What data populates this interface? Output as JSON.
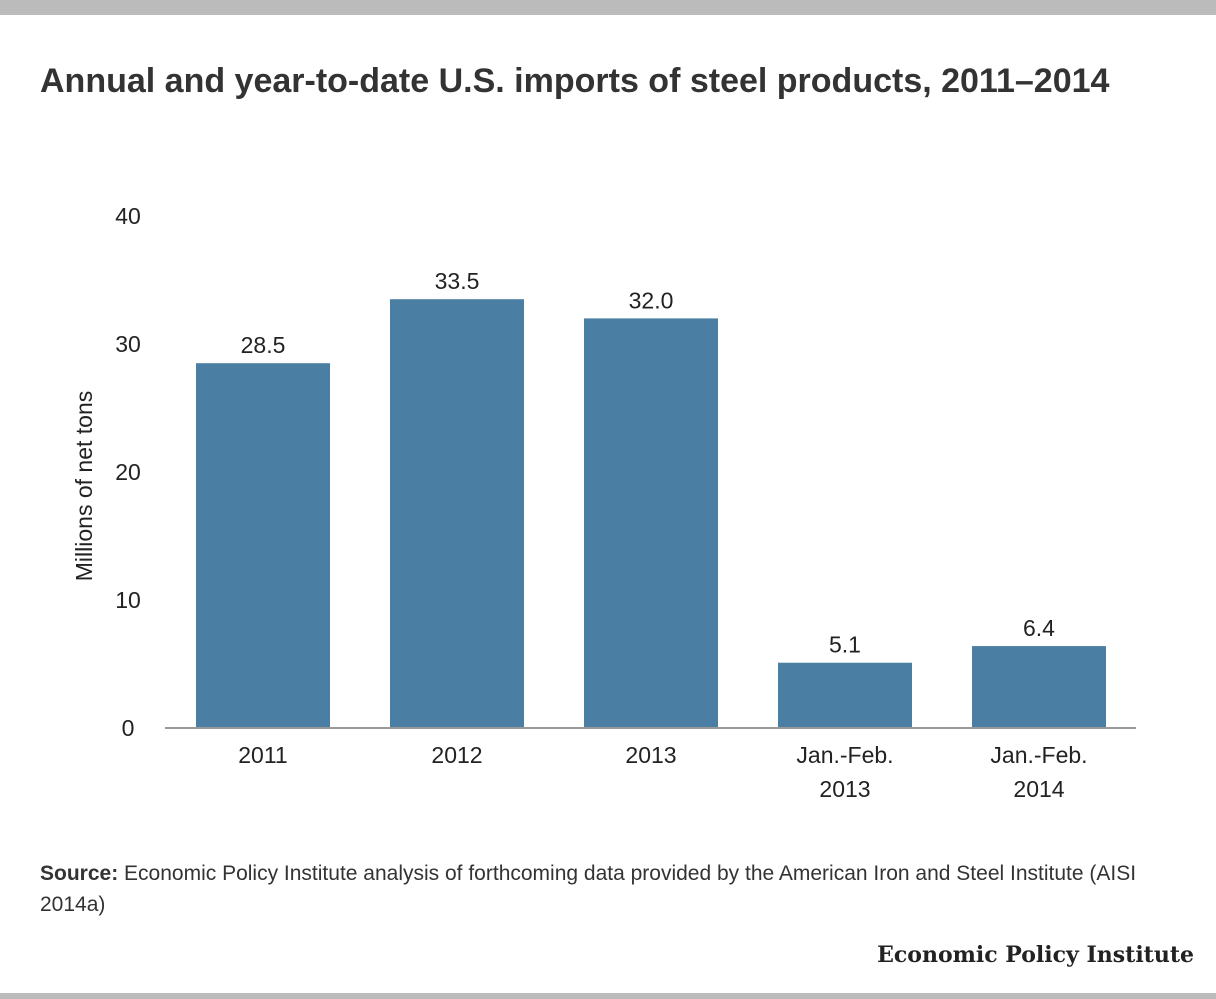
{
  "title": "Annual and year-to-date U.S. imports of steel products, 2011–2014",
  "source": {
    "label": "Source:",
    "text": "Economic Policy Institute analysis of forthcoming data provided by the American Iron and Steel Institute (AISI 2014a)"
  },
  "brand": "Economic Policy Institute",
  "colors": {
    "bar": "#4a7fa3",
    "axis": "#999999",
    "frame": "#bbbbbb"
  },
  "chart_data": {
    "type": "bar",
    "categories": [
      [
        "2011"
      ],
      [
        "2012"
      ],
      [
        "2013"
      ],
      [
        "Jan.-Feb.",
        "2013"
      ],
      [
        "Jan.-Feb.",
        "2014"
      ]
    ],
    "values": [
      28.5,
      33.5,
      32.0,
      5.1,
      6.4
    ],
    "data_labels": [
      "28.5",
      "33.5",
      "32.0",
      "5.1",
      "6.4"
    ],
    "ylabel": "Millions of net tons",
    "ylim": [
      0,
      40
    ],
    "yticks": [
      0,
      10,
      20,
      30,
      40
    ],
    "grid": false,
    "legend": "none"
  }
}
